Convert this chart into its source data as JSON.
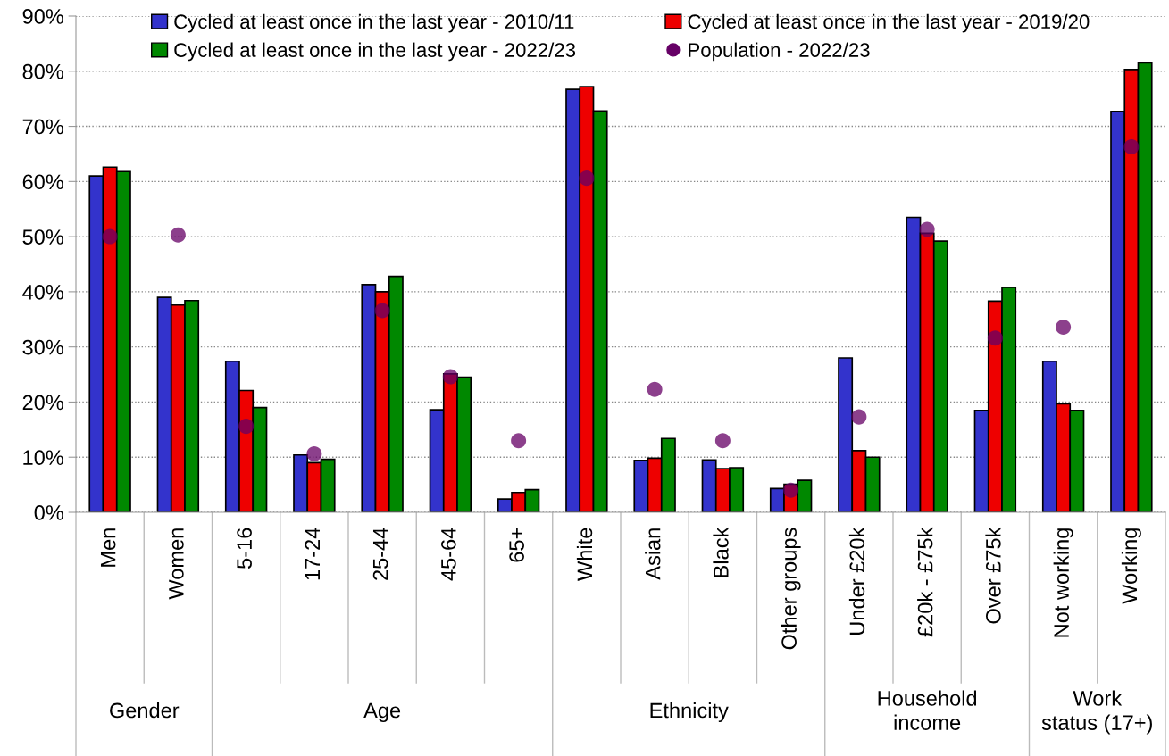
{
  "chart_data": {
    "type": "bar",
    "categories": [
      "Men",
      "Women",
      "5-16",
      "17-24",
      "25-44",
      "45-64",
      "65+",
      "White",
      "Asian",
      "Black",
      "Other groups",
      "Under £20k",
      "£20k - £75k",
      "Over £75k",
      "Not working",
      "Working"
    ],
    "series": [
      {
        "name": "Cycled at least once in the last year - 2010/11",
        "color": "#3333cc",
        "values": [
          61.0,
          39.0,
          27.4,
          10.4,
          41.3,
          18.6,
          2.4,
          76.7,
          9.4,
          9.5,
          4.3,
          28.0,
          53.5,
          18.5,
          27.4,
          72.7
        ]
      },
      {
        "name": "Cycled at least once in the last year - 2019/20",
        "color": "#ee0000",
        "values": [
          62.6,
          37.6,
          22.1,
          9.0,
          40.0,
          25.1,
          3.6,
          77.2,
          9.8,
          7.9,
          5.1,
          11.2,
          50.6,
          38.3,
          19.7,
          80.3
        ]
      },
      {
        "name": "Cycled at least once in the last year - 2022/23",
        "color": "#008800",
        "values": [
          61.8,
          38.4,
          19.0,
          9.6,
          42.8,
          24.5,
          4.1,
          72.8,
          13.4,
          8.1,
          5.8,
          10.0,
          49.2,
          40.8,
          18.5,
          81.5
        ]
      },
      {
        "name": "Population - 2022/23",
        "type": "scatter",
        "color": "#660066",
        "x": [
          "Men",
          "Women",
          "5-16",
          "17-24",
          "25-44",
          "45-64",
          "65+",
          "White",
          "Asian",
          "Black",
          "Other groups",
          "Under £20k",
          "£20k - £75k",
          "Over £75k",
          "Not working",
          "Working"
        ],
        "values": [
          50.0,
          50.3,
          15.6,
          10.6,
          36.6,
          24.6,
          13.0,
          60.6,
          22.3,
          13.0,
          4.0,
          17.3,
          51.3,
          31.6,
          33.6,
          66.3
        ]
      }
    ],
    "annotations": [
      "Gender",
      "Age",
      "Ethnicity",
      "Household\nincome",
      "Work\nstatus (17+)"
    ],
    "ylim": [
      0,
      90
    ],
    "yticks": [
      {
        "value": 0,
        "label": "0%"
      },
      {
        "value": 10,
        "label": "10%"
      },
      {
        "value": 20,
        "label": "20%"
      },
      {
        "value": 30,
        "label": "30%"
      },
      {
        "value": 40,
        "label": "40%"
      },
      {
        "value": 50,
        "label": "50%"
      },
      {
        "value": 60,
        "label": "60%"
      },
      {
        "value": 70,
        "label": "70%"
      },
      {
        "value": 80,
        "label": "80%"
      },
      {
        "value": 90,
        "label": "90%"
      }
    ],
    "grid": "y",
    "legend": "top",
    "marker": "circle"
  }
}
